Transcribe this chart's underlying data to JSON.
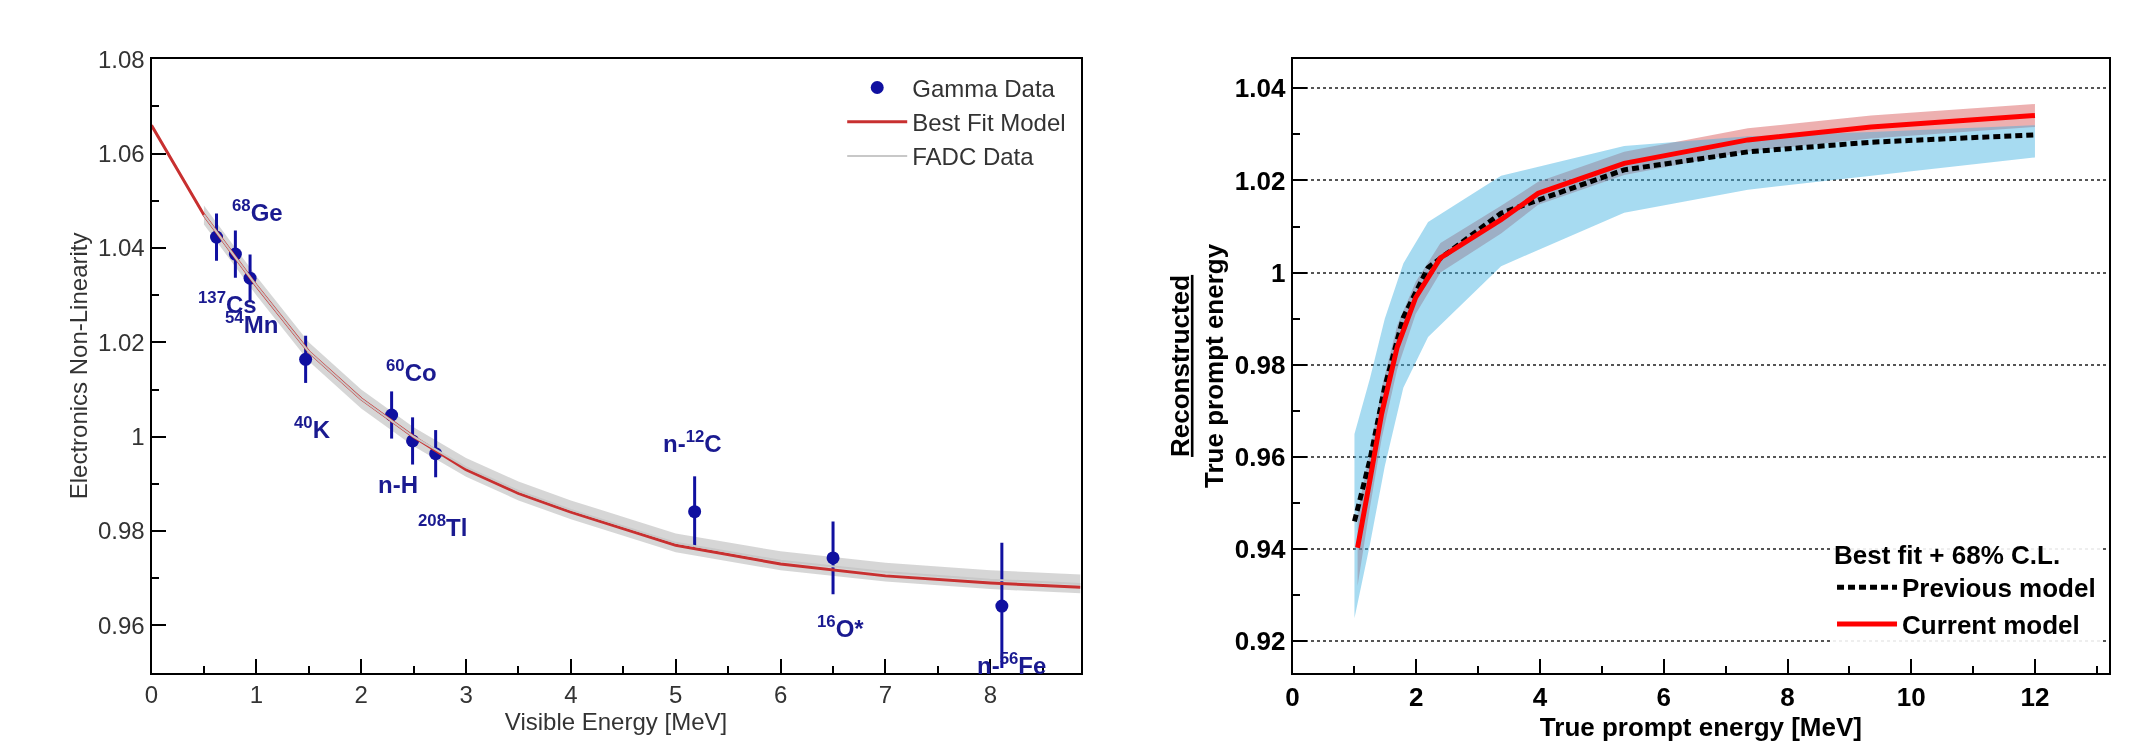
{
  "chart_data": [
    {
      "type": "line",
      "xlabel": "Visible Energy [MeV]",
      "ylabel": "Electronics Non-Linearity",
      "xlim": [
        0,
        8.86
      ],
      "ylim": [
        0.95,
        1.08
      ],
      "xticks": [
        0,
        1,
        2,
        3,
        4,
        5,
        6,
        7,
        8
      ],
      "yticks": [
        0.96,
        0.98,
        {
          "value": 1,
          "label": "1"
        },
        1.02,
        1.04,
        1.06,
        1.08
      ],
      "grid": false,
      "legend": "top right",
      "series": [
        {
          "name": "Gamma Data",
          "type": "scatter",
          "color": "#1010a0",
          "x": [
            0.62,
            0.8,
            0.94,
            1.47,
            2.29,
            2.49,
            2.71,
            5.18,
            6.5,
            8.11
          ],
          "values": [
            1.0423,
            1.0387,
            1.0336,
            1.0164,
            1.0046,
            0.9991,
            0.9964,
            0.9841,
            0.9743,
            0.9641
          ],
          "errors": [
            0.005,
            0.005,
            0.005,
            0.005,
            0.005,
            0.005,
            0.005,
            0.0075,
            0.0077,
            [
              0.951,
              0.9775
            ]
          ]
        },
        {
          "name": "FADC Data",
          "color": "#c8c8c8",
          "x": [
            0.5,
            1,
            1.5,
            2,
            2.5,
            3,
            3.5,
            4,
            5,
            6,
            7,
            8,
            8.86
          ],
          "values": [
            1.047,
            1.032,
            1.018,
            1.008,
            1.0,
            0.9935,
            0.9885,
            0.9845,
            0.9775,
            0.9737,
            0.9713,
            0.9697,
            0.9688
          ],
          "lower": [
            1.045,
            1.03,
            1.016,
            1.006,
            0.998,
            0.9915,
            0.9865,
            0.9825,
            0.9755,
            0.9717,
            0.9693,
            0.9677,
            0.9668
          ],
          "upper": [
            1.049,
            1.034,
            1.02,
            1.01,
            1.002,
            0.9955,
            0.9905,
            0.9865,
            0.9795,
            0.9757,
            0.9733,
            0.9717,
            0.9708
          ]
        },
        {
          "name": "Best Fit Model",
          "color": "#c83030",
          "x": [
            0,
            0.5,
            1,
            1.5,
            2,
            2.5,
            3,
            3.5,
            4,
            5,
            6,
            7,
            8,
            8.86
          ],
          "values": [
            1.066,
            1.047,
            1.032,
            1.018,
            1.008,
            1.0,
            0.993,
            0.988,
            0.984,
            0.977,
            0.973,
            0.9705,
            0.969,
            0.9681
          ]
        }
      ],
      "annotations": [
        {
          "text": "$^{68}$Ge",
          "x": 0.62,
          "y": 1.0423
        },
        {
          "text": "$^{137}$Cs",
          "x": 0.8,
          "y": 1.0387
        },
        {
          "text": "$^{54}$Mn",
          "x": 0.94,
          "y": 1.0336
        },
        {
          "text": "$^{40}$K",
          "x": 1.47,
          "y": 1.0164
        },
        {
          "text": "$^{60}$Co",
          "x": 2.29,
          "y": 1.0046
        },
        {
          "text": "n-H",
          "x": 2.49,
          "y": 0.9991
        },
        {
          "text": "$^{208}$Tl",
          "x": 2.71,
          "y": 0.9964
        },
        {
          "text": "n-$^{12}$C",
          "x": 5.18,
          "y": 0.9841
        },
        {
          "text": "$^{16}$O*",
          "x": 6.5,
          "y": 0.9743
        },
        {
          "text": "n-$^{56}$Fe",
          "x": 8.11,
          "y": 0.9641
        }
      ]
    },
    {
      "type": "line",
      "xlabel": "True prompt energy [MeV]",
      "ylabel": "Reconstructed\nTrue prompt energy",
      "xlim": [
        0,
        13.2
      ],
      "ylim": [
        0.9132,
        1.0463
      ],
      "xticks": [
        0,
        2,
        4,
        6,
        8,
        10,
        12
      ],
      "yticks": [
        0.92,
        0.94,
        0.96,
        0.98,
        {
          "value": 1,
          "label": "1"
        },
        1.02,
        1.04
      ],
      "grid": "y",
      "legend": "bottom right",
      "legend_title": "Best fit + 68% C.L.",
      "series": [
        {
          "name": "Previous model",
          "line_style": "dotted",
          "color": "#000000",
          "x": [
            1.0,
            1.25,
            1.49,
            1.79,
            2.19,
            3.37,
            5.36,
            7.36,
            9.35,
            12.0
          ],
          "values": [
            0.946,
            0.9594,
            0.9752,
            0.9903,
            1.0011,
            1.0129,
            1.0223,
            1.0262,
            1.0283,
            1.0299
          ],
          "lower": [
            0.925,
            0.941,
            0.958,
            0.975,
            0.986,
            1.0014,
            1.013,
            1.018,
            1.021,
            1.025
          ],
          "upper": [
            0.965,
            0.977,
            0.99,
            1.002,
            1.011,
            1.021,
            1.0275,
            1.0296,
            1.0305,
            1.032
          ]
        },
        {
          "name": "Current model",
          "line_style": "solid",
          "color": "#ff0000",
          "x": [
            1.05,
            1.25,
            1.44,
            1.69,
            1.99,
            2.39,
            3.37,
            3.97,
            5.36,
            7.36,
            9.35,
            12.0
          ],
          "values": [
            0.9403,
            0.955,
            0.9694,
            0.9838,
            0.9946,
            1.0032,
            1.0115,
            1.0172,
            1.0237,
            1.0288,
            1.0316,
            1.0341
          ],
          "lower": [
            0.932,
            0.949,
            0.964,
            0.979,
            0.991,
            1.0,
            1.0085,
            1.0147,
            1.0212,
            1.0263,
            1.0291,
            1.0316
          ],
          "upper": [
            0.948,
            0.961,
            0.975,
            0.9885,
            0.998,
            1.0064,
            1.0145,
            1.0197,
            1.0262,
            1.0313,
            1.0341,
            1.0366
          ]
        }
      ]
    }
  ]
}
